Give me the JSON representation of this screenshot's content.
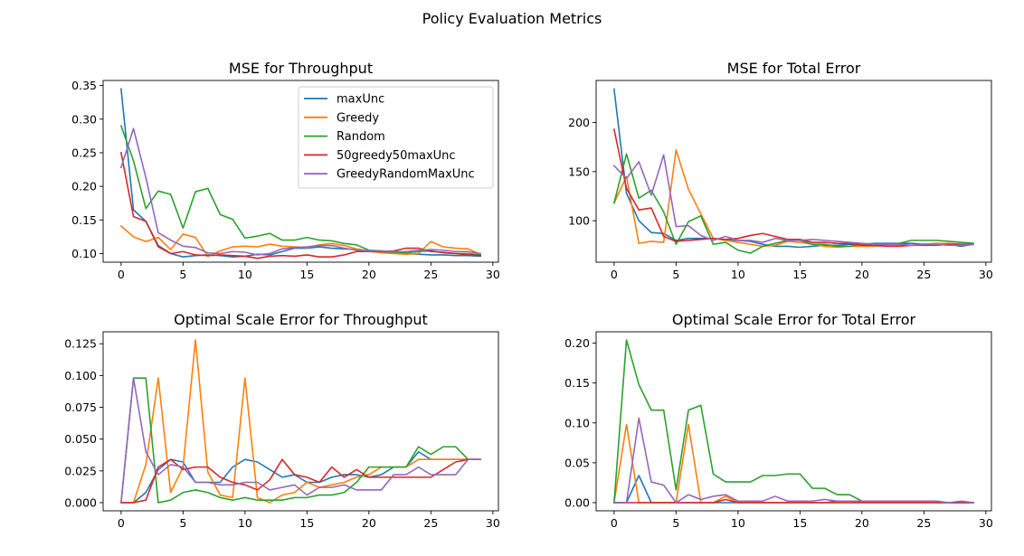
{
  "figure_title": "Policy Evaluation Metrics",
  "series_styles": [
    {
      "name": "maxUnc",
      "color": "#1f77b4"
    },
    {
      "name": "Greedy",
      "color": "#ff7f0e"
    },
    {
      "name": "Random",
      "color": "#2ca02c"
    },
    {
      "name": "50greedy50maxUnc",
      "color": "#d62728"
    },
    {
      "name": "GreedyRandomMaxUnc",
      "color": "#9467bd"
    }
  ],
  "chart_data": [
    {
      "type": "line",
      "title": "MSE for Throughput",
      "xlabel": "",
      "ylabel": "",
      "xlim": [
        -1.45,
        30.45
      ],
      "ylim": [
        0.0872,
        0.3575
      ],
      "xticks": [
        0,
        5,
        10,
        15,
        20,
        25,
        30
      ],
      "yticks": [
        0.1,
        0.15,
        0.2,
        0.25,
        0.3,
        0.35
      ],
      "ytick_labels": [
        "0.10",
        "0.15",
        "0.20",
        "0.25",
        "0.30",
        "0.35"
      ],
      "legend": "top-right",
      "x": [
        0,
        1,
        2,
        3,
        4,
        5,
        6,
        7,
        8,
        9,
        10,
        11,
        12,
        13,
        14,
        15,
        16,
        17,
        18,
        19,
        20,
        21,
        22,
        23,
        24,
        25,
        26,
        27,
        28,
        29
      ],
      "series": [
        {
          "name": "maxUnc",
          "values": [
            0.345,
            0.165,
            0.148,
            0.112,
            0.1,
            0.095,
            0.097,
            0.098,
            0.097,
            0.095,
            0.096,
            0.099,
            0.098,
            0.103,
            0.108,
            0.108,
            0.11,
            0.108,
            0.107,
            0.106,
            0.103,
            0.102,
            0.101,
            0.1,
            0.099,
            0.098,
            0.098,
            0.097,
            0.097,
            0.096
          ]
        },
        {
          "name": "Greedy",
          "values": [
            0.141,
            0.125,
            0.118,
            0.124,
            0.106,
            0.129,
            0.124,
            0.096,
            0.104,
            0.11,
            0.111,
            0.11,
            0.114,
            0.111,
            0.11,
            0.109,
            0.113,
            0.115,
            0.112,
            0.107,
            0.104,
            0.101,
            0.1,
            0.099,
            0.1,
            0.118,
            0.11,
            0.108,
            0.107,
            0.099
          ]
        },
        {
          "name": "Random",
          "values": [
            0.29,
            0.238,
            0.167,
            0.193,
            0.188,
            0.138,
            0.192,
            0.197,
            0.158,
            0.151,
            0.123,
            0.126,
            0.13,
            0.12,
            0.12,
            0.124,
            0.12,
            0.119,
            0.115,
            0.113,
            0.105,
            0.104,
            0.102,
            0.101,
            0.103,
            0.104,
            0.101,
            0.1,
            0.1,
            0.098
          ]
        },
        {
          "name": "50greedy50maxUnc",
          "values": [
            0.25,
            0.155,
            0.148,
            0.11,
            0.1,
            0.103,
            0.098,
            0.097,
            0.098,
            0.097,
            0.096,
            0.093,
            0.096,
            0.097,
            0.096,
            0.098,
            0.095,
            0.095,
            0.098,
            0.103,
            0.103,
            0.103,
            0.104,
            0.108,
            0.108,
            0.103,
            0.102,
            0.1,
            0.098,
            0.097
          ]
        },
        {
          "name": "GreedyRandomMaxUnc",
          "values": [
            0.228,
            0.286,
            0.213,
            0.131,
            0.12,
            0.111,
            0.109,
            0.101,
            0.1,
            0.103,
            0.102,
            0.098,
            0.1,
            0.107,
            0.109,
            0.11,
            0.112,
            0.112,
            0.108,
            0.105,
            0.104,
            0.104,
            0.103,
            0.103,
            0.105,
            0.106,
            0.105,
            0.103,
            0.103,
            0.1
          ]
        }
      ]
    },
    {
      "type": "line",
      "title": "MSE for Total Error",
      "xlabel": "",
      "ylabel": "",
      "xlim": [
        -1.45,
        30.45
      ],
      "ylim": [
        57.8,
        242.8
      ],
      "xticks": [
        0,
        5,
        10,
        15,
        20,
        25,
        30
      ],
      "yticks": [
        100,
        150,
        200
      ],
      "ytick_labels": [
        "100",
        "150",
        "200"
      ],
      "x": [
        0,
        1,
        2,
        3,
        4,
        5,
        6,
        7,
        8,
        9,
        10,
        11,
        12,
        13,
        14,
        15,
        16,
        17,
        18,
        19,
        20,
        21,
        22,
        23,
        24,
        25,
        26,
        27,
        28,
        29
      ],
      "series": [
        {
          "name": "maxUnc",
          "values": [
            234,
            128,
            100,
            88,
            87,
            80,
            82,
            82,
            82,
            80,
            80,
            79,
            76,
            74,
            74,
            73,
            74,
            75,
            75,
            76,
            76,
            77,
            77,
            77,
            77,
            76,
            76,
            76,
            74,
            76
          ]
        },
        {
          "name": "Greedy",
          "values": [
            118,
            145,
            77,
            79,
            78,
            172,
            132,
            107,
            82,
            80,
            78,
            76,
            74,
            75,
            79,
            78,
            76,
            74,
            73,
            74,
            74,
            74,
            75,
            75,
            75,
            76,
            77,
            77,
            76,
            76
          ]
        },
        {
          "name": "Random",
          "values": [
            118,
            168,
            123,
            131,
            109,
            76,
            99,
            105,
            76,
            78,
            70,
            67,
            74,
            77,
            80,
            80,
            76,
            76,
            74,
            74,
            76,
            75,
            76,
            77,
            80,
            80,
            80,
            79,
            78,
            77
          ]
        },
        {
          "name": "50greedy50maxUnc",
          "values": [
            193,
            133,
            111,
            113,
            84,
            79,
            80,
            81,
            82,
            81,
            82,
            85,
            87,
            84,
            81,
            81,
            78,
            78,
            77,
            77,
            75,
            75,
            74,
            74,
            75,
            75,
            75,
            76,
            76,
            76
          ]
        },
        {
          "name": "GreedyRandomMaxUnc",
          "values": [
            156,
            143,
            160,
            126,
            167,
            94,
            95,
            85,
            80,
            84,
            80,
            80,
            78,
            82,
            80,
            80,
            81,
            80,
            79,
            78,
            77,
            76,
            76,
            76,
            75,
            76,
            76,
            75,
            75,
            76
          ]
        }
      ]
    },
    {
      "type": "line",
      "title": "Optimal Scale Error for Throughput",
      "xlabel": "",
      "ylabel": "",
      "xlim": [
        -1.45,
        30.45
      ],
      "ylim": [
        -0.0064,
        0.1344
      ],
      "xticks": [
        0,
        5,
        10,
        15,
        20,
        25,
        30
      ],
      "yticks": [
        0.0,
        0.025,
        0.05,
        0.075,
        0.1,
        0.125
      ],
      "ytick_labels": [
        "0.000",
        "0.025",
        "0.050",
        "0.075",
        "0.100",
        "0.125"
      ],
      "x": [
        0,
        1,
        2,
        3,
        4,
        5,
        6,
        7,
        8,
        9,
        10,
        11,
        12,
        13,
        14,
        15,
        16,
        17,
        18,
        19,
        20,
        21,
        22,
        23,
        24,
        25,
        26,
        27,
        28,
        29
      ],
      "series": [
        {
          "name": "maxUnc",
          "values": [
            0.0,
            0.0,
            0.008,
            0.026,
            0.034,
            0.032,
            0.016,
            0.016,
            0.016,
            0.028,
            0.034,
            0.032,
            0.026,
            0.02,
            0.022,
            0.016,
            0.016,
            0.02,
            0.022,
            0.022,
            0.02,
            0.022,
            0.028,
            0.028,
            0.04,
            0.034,
            0.034,
            0.034,
            0.034,
            0.034
          ]
        },
        {
          "name": "Greedy",
          "values": [
            0.0,
            0.0,
            0.03,
            0.098,
            0.008,
            0.028,
            0.128,
            0.024,
            0.006,
            0.004,
            0.098,
            0.004,
            0.0,
            0.006,
            0.008,
            0.016,
            0.012,
            0.014,
            0.016,
            0.02,
            0.022,
            0.028,
            0.028,
            0.028,
            0.034,
            0.034,
            0.034,
            0.034,
            0.034,
            0.034
          ]
        },
        {
          "name": "Random",
          "values": [
            0.0,
            0.098,
            0.098,
            0.0,
            0.002,
            0.008,
            0.01,
            0.008,
            0.004,
            0.002,
            0.004,
            0.002,
            0.002,
            0.002,
            0.004,
            0.004,
            0.006,
            0.006,
            0.008,
            0.016,
            0.028,
            0.028,
            0.028,
            0.028,
            0.044,
            0.038,
            0.044,
            0.044,
            0.034,
            0.034
          ]
        },
        {
          "name": "50greedy50maxUnc",
          "values": [
            0.0,
            0.0,
            0.002,
            0.028,
            0.034,
            0.026,
            0.028,
            0.028,
            0.02,
            0.016,
            0.014,
            0.01,
            0.018,
            0.034,
            0.022,
            0.02,
            0.016,
            0.028,
            0.02,
            0.026,
            0.02,
            0.02,
            0.02,
            0.02,
            0.02,
            0.02,
            0.026,
            0.032,
            0.034,
            0.034
          ]
        },
        {
          "name": "GreedyRandomMaxUnc",
          "values": [
            0.0,
            0.098,
            0.04,
            0.022,
            0.03,
            0.028,
            0.016,
            0.016,
            0.014,
            0.014,
            0.016,
            0.016,
            0.01,
            0.012,
            0.014,
            0.006,
            0.012,
            0.012,
            0.014,
            0.01,
            0.01,
            0.01,
            0.022,
            0.022,
            0.028,
            0.022,
            0.022,
            0.022,
            0.034,
            0.034
          ]
        }
      ]
    },
    {
      "type": "line",
      "title": "Optimal Scale Error for Total Error",
      "xlabel": "",
      "ylabel": "",
      "xlim": [
        -1.45,
        30.45
      ],
      "ylim": [
        -0.0102,
        0.2142
      ],
      "xticks": [
        0,
        5,
        10,
        15,
        20,
        25,
        30
      ],
      "yticks": [
        0.0,
        0.05,
        0.1,
        0.15,
        0.2
      ],
      "ytick_labels": [
        "0.00",
        "0.05",
        "0.10",
        "0.15",
        "0.20"
      ],
      "x": [
        0,
        1,
        2,
        3,
        4,
        5,
        6,
        7,
        8,
        9,
        10,
        11,
        12,
        13,
        14,
        15,
        16,
        17,
        18,
        19,
        20,
        21,
        22,
        23,
        24,
        25,
        26,
        27,
        28,
        29
      ],
      "series": [
        {
          "name": "maxUnc",
          "values": [
            0.0,
            0.0,
            0.034,
            0.0,
            0.0,
            0.0,
            0.0,
            0.0,
            0.0,
            0.0,
            0.0,
            0.0,
            0.0,
            0.0,
            0.0,
            0.0,
            0.0,
            0.0,
            0.002,
            0.002,
            0.0,
            0.0,
            0.0,
            0.0,
            0.0,
            0.0,
            0.0,
            0.0,
            0.0,
            0.0
          ]
        },
        {
          "name": "Greedy",
          "values": [
            0.0,
            0.098,
            0.0,
            0.0,
            0.0,
            0.0,
            0.098,
            0.0,
            0.0,
            0.008,
            0.0,
            0.0,
            0.0,
            0.0,
            0.0,
            0.0,
            0.0,
            0.0,
            0.0,
            0.0,
            0.0,
            0.0,
            0.0,
            0.0,
            0.0,
            0.0,
            0.0,
            0.0,
            0.0,
            0.0
          ]
        },
        {
          "name": "Random",
          "values": [
            0.0,
            0.204,
            0.148,
            0.116,
            0.116,
            0.016,
            0.116,
            0.122,
            0.036,
            0.026,
            0.026,
            0.026,
            0.034,
            0.034,
            0.036,
            0.036,
            0.018,
            0.018,
            0.01,
            0.01,
            0.002,
            0.002,
            0.002,
            0.002,
            0.002,
            0.002,
            0.002,
            0.0,
            0.0,
            0.0
          ]
        },
        {
          "name": "50greedy50maxUnc",
          "values": [
            0.0,
            0.0,
            0.0,
            0.0,
            0.0,
            0.0,
            0.0,
            0.0,
            0.0,
            0.004,
            0.0,
            0.0,
            0.0,
            0.0,
            0.0,
            0.0,
            0.0,
            0.0,
            0.0,
            0.0,
            0.0,
            0.0,
            0.0,
            0.0,
            0.0,
            0.0,
            0.0,
            0.0,
            0.0,
            0.0
          ]
        },
        {
          "name": "GreedyRandomMaxUnc",
          "values": [
            0.0,
            0.0,
            0.106,
            0.026,
            0.022,
            0.0,
            0.01,
            0.004,
            0.008,
            0.01,
            0.002,
            0.002,
            0.002,
            0.008,
            0.002,
            0.002,
            0.002,
            0.004,
            0.002,
            0.002,
            0.002,
            0.002,
            0.002,
            0.002,
            0.002,
            0.002,
            0.002,
            0.0,
            0.002,
            0.0
          ]
        }
      ]
    }
  ]
}
